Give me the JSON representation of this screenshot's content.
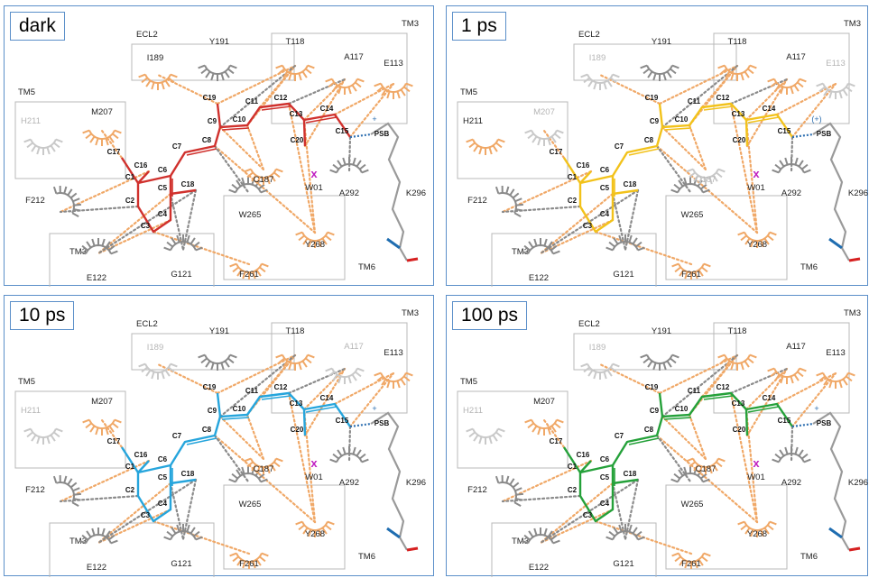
{
  "panels": [
    {
      "id": "p0",
      "label": "dark",
      "color": "#d0312d",
      "c187_gray": false,
      "e113_gray": false,
      "i189_gray": false,
      "m207_gray": false,
      "h211_gray": true,
      "a117_gray": false,
      "t118_gray": false,
      "psb_note": ""
    },
    {
      "id": "p1",
      "label": "1 ps",
      "color": "#f2c21b",
      "c187_gray": true,
      "e113_gray": true,
      "i189_gray": true,
      "m207_gray": true,
      "h211_gray": false,
      "a117_gray": false,
      "t118_gray": false,
      "psb_note": "(+)"
    },
    {
      "id": "p2",
      "label": "10 ps",
      "color": "#26a5dc",
      "c187_gray": false,
      "e113_gray": false,
      "i189_gray": true,
      "m207_gray": false,
      "h211_gray": true,
      "a117_gray": true,
      "t118_gray": false,
      "psb_note": ""
    },
    {
      "id": "p3",
      "label": "100 ps",
      "color": "#25a13a",
      "c187_gray": false,
      "e113_gray": false,
      "i189_gray": true,
      "m207_gray": false,
      "h211_gray": true,
      "a117_gray": false,
      "t118_gray": false,
      "psb_note": ""
    }
  ],
  "labels": {
    "boxes": [
      "ECL2",
      "TM3",
      "TM5",
      "TM3",
      "TM6"
    ],
    "residues": {
      "Y191": "Y191",
      "I189": "I189",
      "T118": "T118",
      "A117": "A117",
      "E113": "E113",
      "H211": "H211",
      "M207": "M207",
      "F212": "F212",
      "E122": "E122",
      "G121": "G121",
      "F261": "F261",
      "W265": "W265",
      "Y268": "Y268",
      "C187": "C187",
      "A292": "A292",
      "K296": "K296",
      "W01": "W01"
    },
    "atoms": {
      "C1": "C1",
      "C2": "C2",
      "C3": "C3",
      "C4": "C4",
      "C5": "C5",
      "C6": "C6",
      "C7": "C7",
      "C8": "C8",
      "C9": "C9",
      "C10": "C10",
      "C11": "C11",
      "C12": "C12",
      "C13": "C13",
      "C14": "C14",
      "C15": "C15",
      "C16": "C16",
      "C17": "C17",
      "C18": "C18",
      "C19": "C19",
      "C20": "C20",
      "PSB": "PSB"
    },
    "psb_plus": "+",
    "water_mark": "x"
  },
  "colors": {
    "hydrophobic": "#f0a867",
    "neutral": "#8a8a8a",
    "faded": "#c9c9c9",
    "water": "#c020c0",
    "lysine": "#9a9a9a",
    "psb_link": "#2d6fb0",
    "nterm": "#1f6db0",
    "cterm": "#d62020",
    "panel_border": "#5b8fc9",
    "box_border": "#b8b8b8"
  }
}
